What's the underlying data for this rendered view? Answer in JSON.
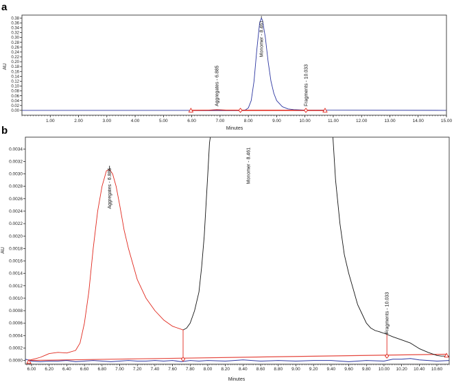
{
  "chart_data": [
    {
      "panel_label": "a",
      "type": "line",
      "xlabel": "Minutes",
      "ylabel": "AU",
      "xlim": [
        0,
        15
      ],
      "ylim": [
        -0.02,
        0.392
      ],
      "x_ticks": [
        "1.00",
        "2.00",
        "3.00",
        "4.00",
        "5.00",
        "6.00",
        "7.00",
        "8.00",
        "9.00",
        "10.00",
        "11.00",
        "12.00",
        "13.00",
        "14.00",
        "15.00"
      ],
      "y_ticks": [
        "0.00",
        "0.02",
        "0.04",
        "0.06",
        "0.08",
        "0.10",
        "0.12",
        "0.14",
        "0.16",
        "0.18",
        "0.20",
        "0.22",
        "0.24",
        "0.26",
        "0.28",
        "0.30",
        "0.32",
        "0.34",
        "0.36",
        "0.38"
      ],
      "grid": false,
      "colors": {
        "trace": "#2b35a0",
        "integration": "#e0261b",
        "axis": "#000000"
      },
      "series": [
        {
          "role": "trace",
          "x": [
            0,
            7.8,
            7.9,
            8.0,
            8.1,
            8.2,
            8.3,
            8.4,
            8.461,
            8.5,
            8.6,
            8.7,
            8.8,
            8.9,
            9.0,
            9.2,
            9.4,
            9.6,
            10.0,
            15.0
          ],
          "y": [
            0,
            0,
            0.002,
            0.01,
            0.04,
            0.12,
            0.25,
            0.36,
            0.38,
            0.37,
            0.3,
            0.2,
            0.12,
            0.07,
            0.04,
            0.015,
            0.006,
            0.003,
            0.001,
            0
          ]
        },
        {
          "role": "integration",
          "x": [
            5.97,
            6.6,
            6.885,
            7.2,
            7.72,
            10.033,
            10.71
          ],
          "y": [
            0,
            0.001,
            0.003,
            0.0013,
            0.0005,
            0.0004,
            0.0001
          ]
        }
      ],
      "baseline": {
        "x": [
          5.97,
          10.71
        ],
        "y": [
          0,
          0.0001
        ]
      },
      "markers": [
        {
          "shape": "triangle",
          "x": 5.97
        },
        {
          "shape": "diamond",
          "x": 7.72
        },
        {
          "shape": "diamond",
          "x": 10.033
        },
        {
          "shape": "triangle",
          "x": 10.71
        }
      ],
      "annotations": [
        {
          "text": "Aggregates - 6.885",
          "x": 6.885
        },
        {
          "text": "Monomer - 8.461",
          "x": 8.461
        },
        {
          "text": "Fragments - 10.033",
          "x": 10.033
        }
      ]
    },
    {
      "panel_label": "b",
      "type": "line",
      "xlabel": "Minutes",
      "ylabel": "AU",
      "xlim": [
        5.93,
        10.74
      ],
      "ylim": [
        -6e-05,
        0.00359
      ],
      "x_ticks": [
        "6.00",
        "6.20",
        "6.40",
        "6.60",
        "6.80",
        "7.00",
        "7.20",
        "7.40",
        "7.60",
        "7.80",
        "8.00",
        "8.20",
        "8.40",
        "8.60",
        "8.80",
        "9.00",
        "9.20",
        "9.40",
        "9.60",
        "9.80",
        "10.00",
        "10.20",
        "10.40",
        "10.60"
      ],
      "y_ticks": [
        "0.0000",
        "0.0002",
        "0.0004",
        "0.0006",
        "0.0008",
        "0.0010",
        "0.0012",
        "0.0014",
        "0.0016",
        "0.0018",
        "0.0020",
        "0.0022",
        "0.0024",
        "0.0026",
        "0.0028",
        "0.0030",
        "0.0032",
        "0.0034"
      ],
      "grid": false,
      "colors": {
        "aggregates": "#e0261b",
        "monomer": "#111111",
        "blank": "#2b35a0",
        "baseline": "#e0261b"
      },
      "series": [
        {
          "role": "aggregates",
          "x": [
            5.96,
            6.05,
            6.1,
            6.15,
            6.2,
            6.3,
            6.4,
            6.5,
            6.55,
            6.6,
            6.65,
            6.7,
            6.75,
            6.8,
            6.85,
            6.885,
            6.92,
            6.96,
            7.0,
            7.05,
            7.1,
            7.2,
            7.3,
            7.4,
            7.5,
            7.6,
            7.72
          ],
          "y": [
            0.0,
            3e-05,
            5e-05,
            8e-05,
            0.00011,
            0.00013,
            0.00012,
            0.00016,
            0.00028,
            0.0006,
            0.0011,
            0.0018,
            0.0024,
            0.0028,
            0.00305,
            0.00307,
            0.003,
            0.0028,
            0.0025,
            0.0021,
            0.0018,
            0.0013,
            0.001,
            0.0008,
            0.00065,
            0.00055,
            0.00049
          ]
        },
        {
          "role": "monomer",
          "x": [
            7.72,
            7.76,
            7.8,
            7.85,
            7.9,
            7.93,
            7.96,
            7.98,
            8.0,
            8.02,
            8.03
          ],
          "y": [
            0.00049,
            0.00052,
            0.0006,
            0.0008,
            0.0011,
            0.0015,
            0.002,
            0.0025,
            0.003,
            0.0035,
            0.0036
          ]
        },
        {
          "role": "monomer",
          "x": [
            9.42,
            9.45,
            9.5,
            9.55,
            9.6,
            9.65,
            9.7,
            9.75,
            9.8,
            9.85,
            9.9,
            9.95,
            10.033,
            10.1,
            10.2,
            10.3,
            10.4,
            10.5,
            10.6,
            10.65,
            10.74
          ],
          "y": [
            0.0036,
            0.0029,
            0.0022,
            0.0017,
            0.0014,
            0.00115,
            0.0009,
            0.00075,
            0.0006,
            0.00052,
            0.00048,
            0.00046,
            0.00042,
            0.00038,
            0.00033,
            0.00028,
            0.00019,
            0.00013,
            8e-05,
            7e-05,
            7e-05
          ]
        },
        {
          "role": "blank",
          "x": [
            5.93,
            6.0,
            6.1,
            6.2,
            6.3,
            6.4,
            6.5,
            6.6,
            6.7,
            6.8,
            6.9,
            7.0,
            7.1,
            7.2,
            7.3,
            7.4,
            7.5,
            7.6,
            7.7,
            7.8,
            7.9,
            8.0,
            8.2,
            8.4,
            8.6,
            8.8,
            9.0,
            9.2,
            9.4,
            9.6,
            9.8,
            10.0,
            10.1,
            10.2,
            10.3,
            10.4,
            10.5,
            10.6,
            10.74
          ],
          "y": [
            2e-05,
            -1e-05,
            -2e-05,
            -1e-05,
            -1e-05,
            0.0,
            -2e-05,
            -1e-05,
            0.0,
            -1e-05,
            -2e-05,
            -1e-05,
            0.0,
            -1e-05,
            -1e-05,
            0.0,
            -1e-05,
            0.0,
            -2e-05,
            0.0,
            -1e-05,
            0.0,
            -1e-05,
            1e-05,
            -1e-05,
            0.0,
            -1e-05,
            0.0,
            0.0,
            -2e-05,
            0.0,
            -1e-05,
            2e-05,
            2e-05,
            3e-05,
            1e-05,
            0.0,
            -1e-05,
            0.0
          ]
        }
      ],
      "baseline": {
        "x": [
          5.97,
          10.71
        ],
        "y": [
          0.0,
          0.0001
        ]
      },
      "markers": [
        {
          "shape": "triangle",
          "x": 5.97,
          "y": -2e-05
        },
        {
          "shape": "diamond",
          "x": 7.72,
          "y": 2e-05
        },
        {
          "shape": "diamond",
          "x": 10.033,
          "y": 7e-05
        },
        {
          "shape": "triangle",
          "x": 10.71,
          "y": 8e-05
        }
      ],
      "drop_lines": [
        {
          "x": 7.72,
          "y": 0.00049
        },
        {
          "x": 10.033,
          "y": 0.00042
        }
      ],
      "annotations": [
        {
          "text": "Aggregates - 6.885",
          "x": 6.885
        },
        {
          "text": "Monomer - 8.461",
          "x": 8.461
        },
        {
          "text": "Fragments - 10.033",
          "x": 10.033
        }
      ]
    }
  ]
}
